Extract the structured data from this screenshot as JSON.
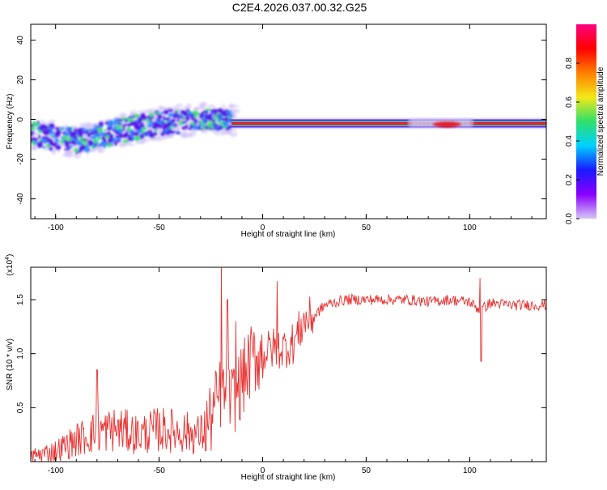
{
  "figure": {
    "title": "C2E4.2026.037.00.32.G25"
  },
  "colors": {
    "snr_line": "#e8302f",
    "band_core": "#e0202a",
    "band_edge": "#27d9c8",
    "scatter_low": "#5a16e8",
    "scatter_mid": "#2a8cff",
    "scatter_high": "#3fe070"
  },
  "chart_data": [
    {
      "type": "heatmap",
      "xlabel": "Height of straight line (km)",
      "ylabel": "Frequency (Hz)",
      "xlim": [
        -112,
        137
      ],
      "ylim": [
        -50,
        48
      ],
      "xticks": [
        -100,
        -50,
        0,
        50,
        100
      ],
      "xtick_labels": [
        "-100",
        "-50",
        "0",
        "50",
        "100"
      ],
      "yticks": [
        -40,
        -20,
        0,
        20,
        40
      ],
      "ytick_labels": [
        "-40",
        "-20",
        "0",
        "20",
        "40"
      ],
      "ridge": {
        "description_x": [
          -112,
          -90,
          -70,
          -50,
          -35,
          -20,
          0,
          30,
          60,
          90,
          137
        ],
        "frequency": [
          -7,
          -11,
          -6,
          -2,
          0,
          0,
          -2,
          -2,
          -2,
          -2,
          -2
        ]
      },
      "colorbar": {
        "label": "Normalized spectral amplitude",
        "range": [
          0,
          1
        ],
        "ticks": [
          0.0,
          0.2,
          0.4,
          0.6,
          0.8
        ],
        "tick_labels": [
          "0.0",
          "0.2",
          "0.4",
          "0.6",
          "0.8"
        ],
        "stops": [
          "#d7c7f5",
          "#8a00ff",
          "#1a1aff",
          "#00d0ff",
          "#2ee06a",
          "#f4e817",
          "#ff7f00",
          "#ff0000",
          "#ff0080"
        ]
      }
    },
    {
      "type": "line",
      "xlabel": "Height of straight line (km)",
      "ylabel": "SNR (10 * v/v)",
      "scale_note": "(x10^4)",
      "scale_base": "(x10",
      "scale_exp": "4",
      "scale_close": ")",
      "xlim": [
        -112,
        137
      ],
      "ylim": [
        0.0,
        1.8
      ],
      "xticks": [
        -100,
        -50,
        0,
        50,
        100
      ],
      "xtick_labels": [
        "-100",
        "-50",
        "0",
        "50",
        "100"
      ],
      "yticks": [
        0.5,
        1.0,
        1.5
      ],
      "ytick_labels": [
        "0.5",
        "1.0",
        "1.5"
      ],
      "series": [
        {
          "name": "SNR",
          "x": [
            -112,
            -100,
            -90,
            -80,
            -70,
            -60,
            -50,
            -40,
            -30,
            -25,
            -20,
            -15,
            -10,
            -5,
            0,
            5,
            10,
            15,
            20,
            25,
            30,
            40,
            50,
            60,
            70,
            80,
            90,
            100,
            105,
            110,
            120,
            137
          ],
          "values": [
            0.05,
            0.1,
            0.2,
            0.28,
            0.3,
            0.25,
            0.3,
            0.28,
            0.25,
            0.4,
            0.65,
            0.55,
            0.75,
            0.95,
            1.0,
            1.05,
            1.05,
            1.1,
            1.3,
            1.35,
            1.45,
            1.5,
            1.5,
            1.5,
            1.5,
            1.48,
            1.5,
            1.48,
            1.4,
            1.47,
            1.45,
            1.45
          ]
        }
      ],
      "peaks": [
        {
          "x": -80,
          "value": 0.85
        },
        {
          "x": -20,
          "value": 1.8
        },
        {
          "x": -17,
          "value": 1.5
        },
        {
          "x": -13,
          "value": 1.3
        },
        {
          "x": 7,
          "value": 1.67
        },
        {
          "x": 105,
          "value": 1.7
        },
        {
          "x": 105.5,
          "value": 0.93
        }
      ]
    }
  ]
}
